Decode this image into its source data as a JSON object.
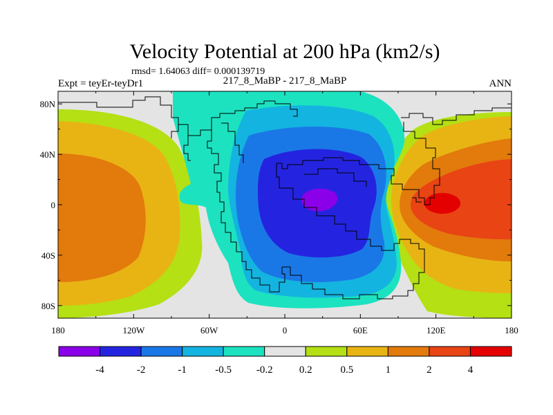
{
  "chart_data": {
    "type": "heatmap",
    "title": "Velocity Potential at 200 hPa (km2/s)",
    "subtitle_stats": "rmsd= 1.64063 diff= 0.000139719",
    "left_label": "Expt = teyEr-teyDr1",
    "center_label": "217_8_MaBP - 217_8_MaBP",
    "right_label": "ANN",
    "x_ticks": [
      "180",
      "120W",
      "60W",
      "0",
      "60E",
      "120E",
      "180"
    ],
    "x_tick_values": [
      -180,
      -120,
      -60,
      0,
      60,
      120,
      180
    ],
    "y_ticks": [
      "80N",
      "40N",
      "0",
      "40S",
      "80S"
    ],
    "y_tick_values": [
      80,
      40,
      0,
      -40,
      -80
    ],
    "xlim": [
      -180,
      180
    ],
    "ylim": [
      -90,
      90
    ],
    "colorbar": {
      "levels": [
        "-4",
        "-2",
        "-1",
        "-0.5",
        "-0.2",
        "0.2",
        "0.5",
        "1",
        "2",
        "4"
      ],
      "colors": [
        "#8a00e8",
        "#2424e0",
        "#1a78e6",
        "#14b4e0",
        "#1ce2c0",
        "#e4e4e4",
        "#b4e014",
        "#e8b414",
        "#e27a0c",
        "#e84414",
        "#e40000"
      ]
    },
    "field_centers": [
      {
        "name": "negative-core-atlantic-africa",
        "lon": 30,
        "lat": 0,
        "value": -4.3
      },
      {
        "name": "positive-core-west-pacific",
        "lon": 128,
        "lat": 0,
        "value": 4.2
      },
      {
        "name": "positive-lobe-east-pacific",
        "lon": -170,
        "lat": 0,
        "value": 1.6
      }
    ]
  }
}
